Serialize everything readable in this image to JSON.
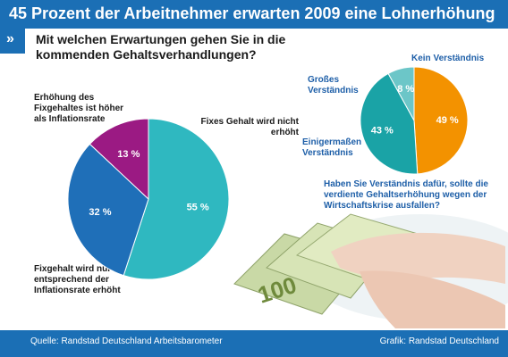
{
  "header": {
    "title": "45 Prozent der Arbeitnehmer erwarten 2009 eine Lohnerhöhung",
    "marker": "»"
  },
  "footer": {
    "source": "Quelle: Randstad Deutschland Arbeitsbarometer",
    "credit": "Grafik: Randstad Deutschland"
  },
  "colors": {
    "brand": "#1b6fb5",
    "turquoise": "#2fb8c0",
    "blue": "#1f6fb8",
    "purple": "#9b1a83",
    "orange": "#f39200",
    "teal": "#1aa3a6",
    "lightTeal": "#6cc6c8"
  },
  "chart_data": [
    {
      "type": "pie",
      "title": "Mit welchen Erwartungen gehen Sie in die kommenden Gehaltsverhandlungen?",
      "slices": [
        {
          "label": "Fixes Gehalt wird nicht erhöht",
          "value": 55,
          "value_label": "55 %",
          "color": "#2fb8c0"
        },
        {
          "label": "Fixgehalt wird nur entsprechend der Inflationsrate erhöht",
          "value": 32,
          "value_label": "32 %",
          "color": "#1f6fb8"
        },
        {
          "label": "Erhöhung des Fixgehaltes ist höher als Inflationsrate",
          "value": 13,
          "value_label": "13 %",
          "color": "#9b1a83"
        }
      ]
    },
    {
      "type": "pie",
      "title": "Haben Sie Verständnis dafür, sollte die verdiente Gehaltserhöhung wegen der Wirtschaftskrise ausfallen?",
      "slices": [
        {
          "label": "Kein Verständnis",
          "value": 49,
          "value_label": "49 %",
          "color": "#f39200"
        },
        {
          "label": "Einigermaßen Verständnis",
          "value": 43,
          "value_label": "43 %",
          "color": "#1aa3a6"
        },
        {
          "label": "Großes Verständnis",
          "value": 8,
          "value_label": "8 %",
          "color": "#6cc6c8"
        }
      ]
    }
  ]
}
